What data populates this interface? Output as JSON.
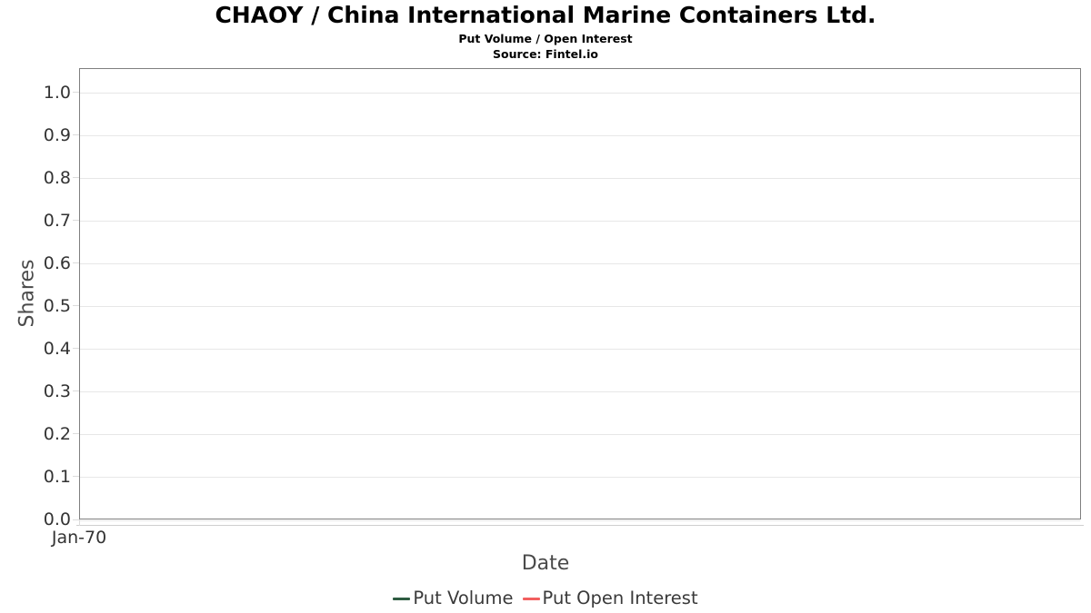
{
  "header": {
    "title": "CHAOY / China International Marine Containers Ltd.",
    "subtitle": "Put Volume / Open Interest",
    "source": "Source: Fintel.io"
  },
  "chart_data": {
    "type": "line",
    "title": "CHAOY / China International Marine Containers Ltd.",
    "subtitle": "Put Volume / Open Interest",
    "source": "Source: Fintel.io",
    "xlabel": "Date",
    "ylabel": "Shares",
    "x": [],
    "x_ticks": [
      "Jan-70"
    ],
    "y_ticks": [
      "0.0",
      "0.1",
      "0.2",
      "0.3",
      "0.4",
      "0.5",
      "0.6",
      "0.7",
      "0.8",
      "0.9",
      "1.0"
    ],
    "ylim": [
      0,
      1.057
    ],
    "grid": true,
    "legend_position": "bottom",
    "series": [
      {
        "name": "Put Volume",
        "color": "#2e5c41",
        "values": []
      },
      {
        "name": "Put Open Interest",
        "color": "#f25f5f",
        "values": []
      }
    ],
    "note": "empty chart - no data points plotted"
  },
  "legend": {
    "items": [
      {
        "label": "Put Volume",
        "color": "#2e5c41"
      },
      {
        "label": "Put Open Interest",
        "color": "#f25f5f"
      }
    ]
  },
  "style_colors": {
    "plot_border": "#7f7f7f",
    "gridline": "#e7e7e7",
    "tick": "#dcdcdc",
    "axis_line": "#cfcfcf",
    "tick_label": "#333333",
    "axis_label": "#4a4a4a",
    "legend_text": "#3a3a3a"
  }
}
